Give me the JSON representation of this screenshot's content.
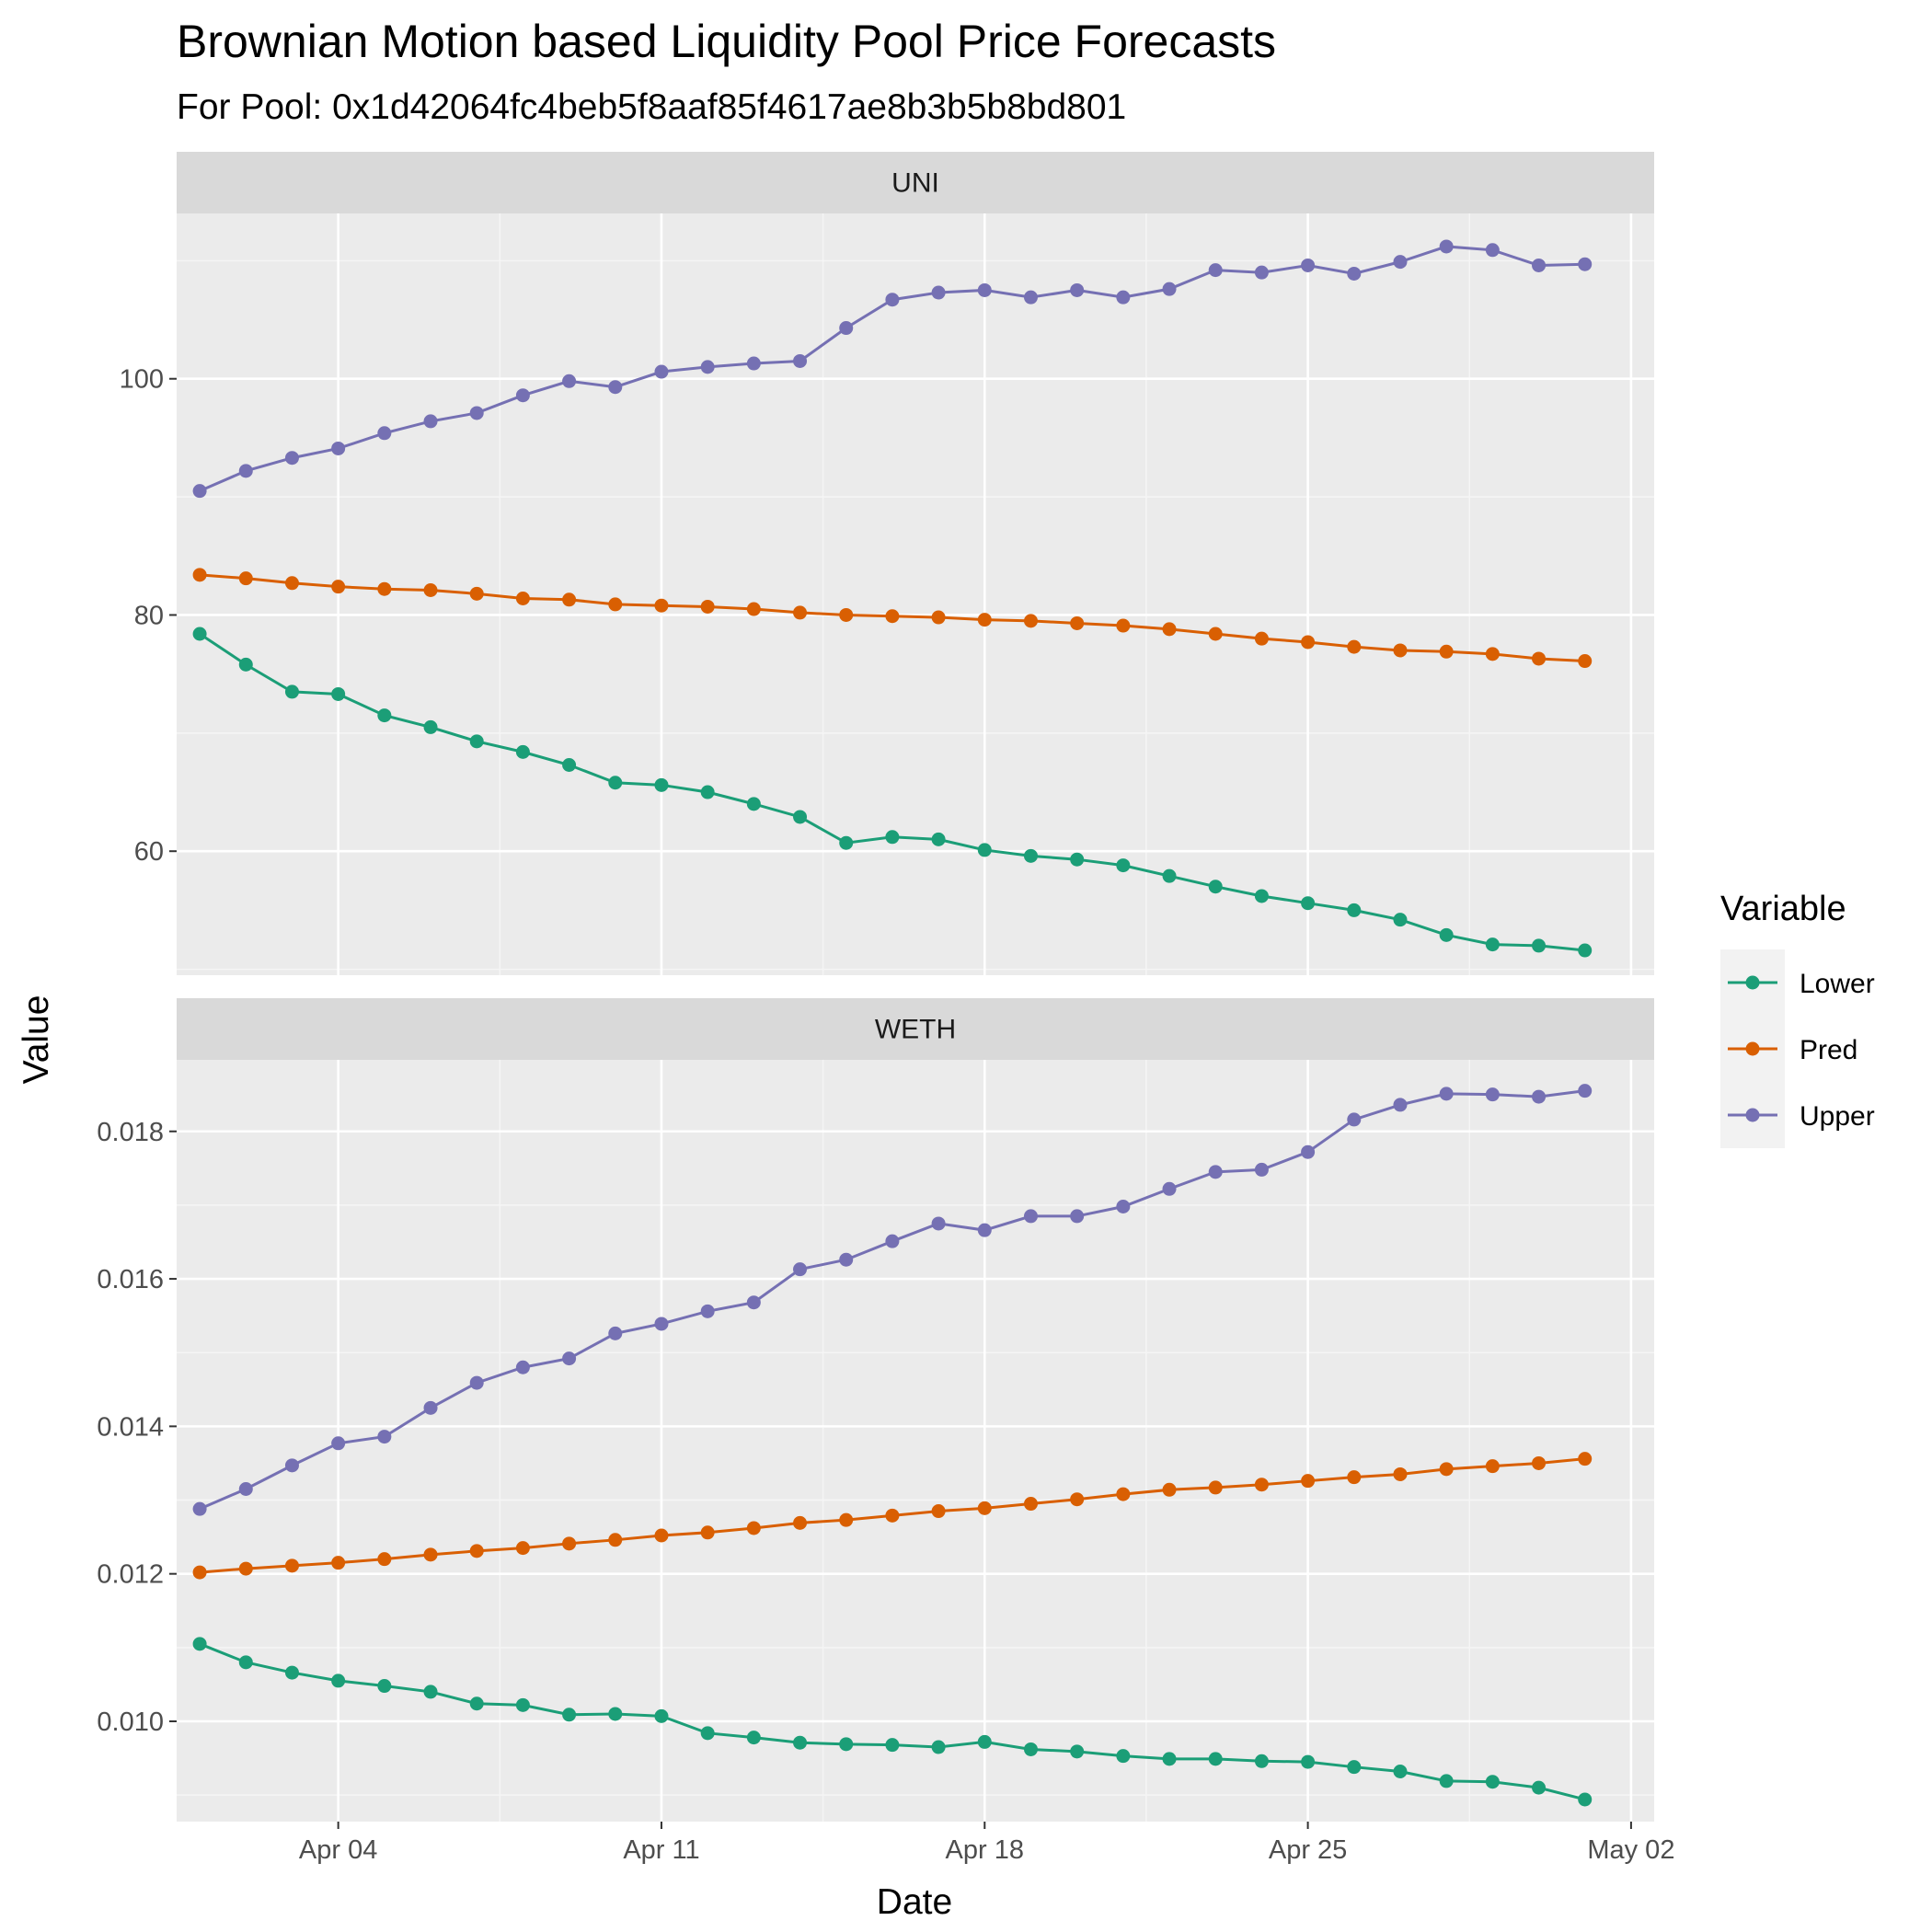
{
  "chart_data": {
    "type": "line",
    "title": "Brownian Motion based Liquidity Pool Price Forecasts",
    "subtitle": "For Pool: 0x1d42064fc4beb5f8aaf85f4617ae8b3b5b8bd801",
    "xlabel": "Date",
    "ylabel": "Value",
    "legend_title": "Variable",
    "legend_placement": "right",
    "grid": true,
    "x_ticks": [
      "Apr 04",
      "Apr 11",
      "Apr 18",
      "Apr 25",
      "May 02"
    ],
    "x": [
      "2022-04-01",
      "2022-04-02",
      "2022-04-03",
      "2022-04-04",
      "2022-04-05",
      "2022-04-06",
      "2022-04-07",
      "2022-04-08",
      "2022-04-09",
      "2022-04-10",
      "2022-04-11",
      "2022-04-12",
      "2022-04-13",
      "2022-04-14",
      "2022-04-15",
      "2022-04-16",
      "2022-04-17",
      "2022-04-18",
      "2022-04-19",
      "2022-04-20",
      "2022-04-21",
      "2022-04-22",
      "2022-04-23",
      "2022-04-24",
      "2022-04-25",
      "2022-04-26",
      "2022-04-27",
      "2022-04-28",
      "2022-04-29",
      "2022-04-30",
      "2022-05-01"
    ],
    "series_colors": {
      "Lower": "#1b9e77",
      "Pred": "#d95f02",
      "Upper": "#7570b3"
    },
    "panels": [
      {
        "label": "UNI",
        "ylim": [
          49.5,
          114
        ],
        "y_ticks": [
          60,
          80,
          100
        ],
        "y_tick_labels": [
          "60",
          "80",
          "100"
        ],
        "series": [
          {
            "name": "Lower",
            "values": [
              78.4,
              75.8,
              73.5,
              73.3,
              71.5,
              70.5,
              69.3,
              68.4,
              67.3,
              65.8,
              65.6,
              65.0,
              64.0,
              62.9,
              60.7,
              61.2,
              61.0,
              60.1,
              59.6,
              59.3,
              58.8,
              57.9,
              57.0,
              56.2,
              55.6,
              55.0,
              54.2,
              52.9,
              52.1,
              52.0,
              51.6
            ]
          },
          {
            "name": "Pred",
            "values": [
              83.4,
              83.1,
              82.7,
              82.4,
              82.2,
              82.1,
              81.8,
              81.4,
              81.3,
              80.9,
              80.8,
              80.7,
              80.5,
              80.2,
              80.0,
              79.9,
              79.8,
              79.6,
              79.5,
              79.3,
              79.1,
              78.8,
              78.4,
              78.0,
              77.7,
              77.3,
              77.0,
              76.9,
              76.7,
              76.3,
              76.1
            ]
          },
          {
            "name": "Upper",
            "values": [
              90.5,
              92.2,
              93.3,
              94.1,
              95.4,
              96.4,
              97.1,
              98.6,
              99.8,
              99.3,
              100.6,
              101.0,
              101.3,
              101.5,
              104.3,
              106.7,
              107.3,
              107.5,
              106.9,
              107.5,
              106.9,
              107.6,
              109.2,
              109.0,
              109.6,
              108.9,
              109.9,
              111.2,
              110.9,
              109.6,
              109.7
            ]
          }
        ]
      },
      {
        "label": "WETH",
        "ylim": [
          0.00864,
          0.01897
        ],
        "y_ticks": [
          0.01,
          0.012,
          0.014,
          0.016,
          0.018
        ],
        "y_tick_labels": [
          "0.010",
          "0.012",
          "0.014",
          "0.016",
          "0.018"
        ],
        "series": [
          {
            "name": "Lower",
            "values": [
              0.01105,
              0.0108,
              0.01066,
              0.01055,
              0.01048,
              0.0104,
              0.01024,
              0.01022,
              0.01009,
              0.0101,
              0.01007,
              0.00984,
              0.00978,
              0.00971,
              0.00969,
              0.00968,
              0.00965,
              0.00972,
              0.00962,
              0.00959,
              0.00953,
              0.00949,
              0.00949,
              0.00946,
              0.00945,
              0.00938,
              0.00932,
              0.00919,
              0.00918,
              0.0091,
              0.00894
            ]
          },
          {
            "name": "Pred",
            "values": [
              0.01202,
              0.01207,
              0.01211,
              0.01215,
              0.0122,
              0.01226,
              0.01231,
              0.01235,
              0.01241,
              0.01246,
              0.01252,
              0.01256,
              0.01262,
              0.01269,
              0.01273,
              0.01279,
              0.01285,
              0.01289,
              0.01295,
              0.01301,
              0.01308,
              0.01314,
              0.01317,
              0.01321,
              0.01326,
              0.01331,
              0.01335,
              0.01342,
              0.01346,
              0.0135,
              0.01356
            ]
          },
          {
            "name": "Upper",
            "values": [
              0.01288,
              0.01315,
              0.01347,
              0.01377,
              0.01386,
              0.01425,
              0.01459,
              0.0148,
              0.01492,
              0.01526,
              0.01539,
              0.01556,
              0.01568,
              0.01613,
              0.01626,
              0.01651,
              0.01675,
              0.01666,
              0.01685,
              0.01685,
              0.01698,
              0.01722,
              0.01745,
              0.01748,
              0.01772,
              0.01816,
              0.01836,
              0.01851,
              0.0185,
              0.01847,
              0.01855
            ]
          }
        ]
      }
    ]
  }
}
